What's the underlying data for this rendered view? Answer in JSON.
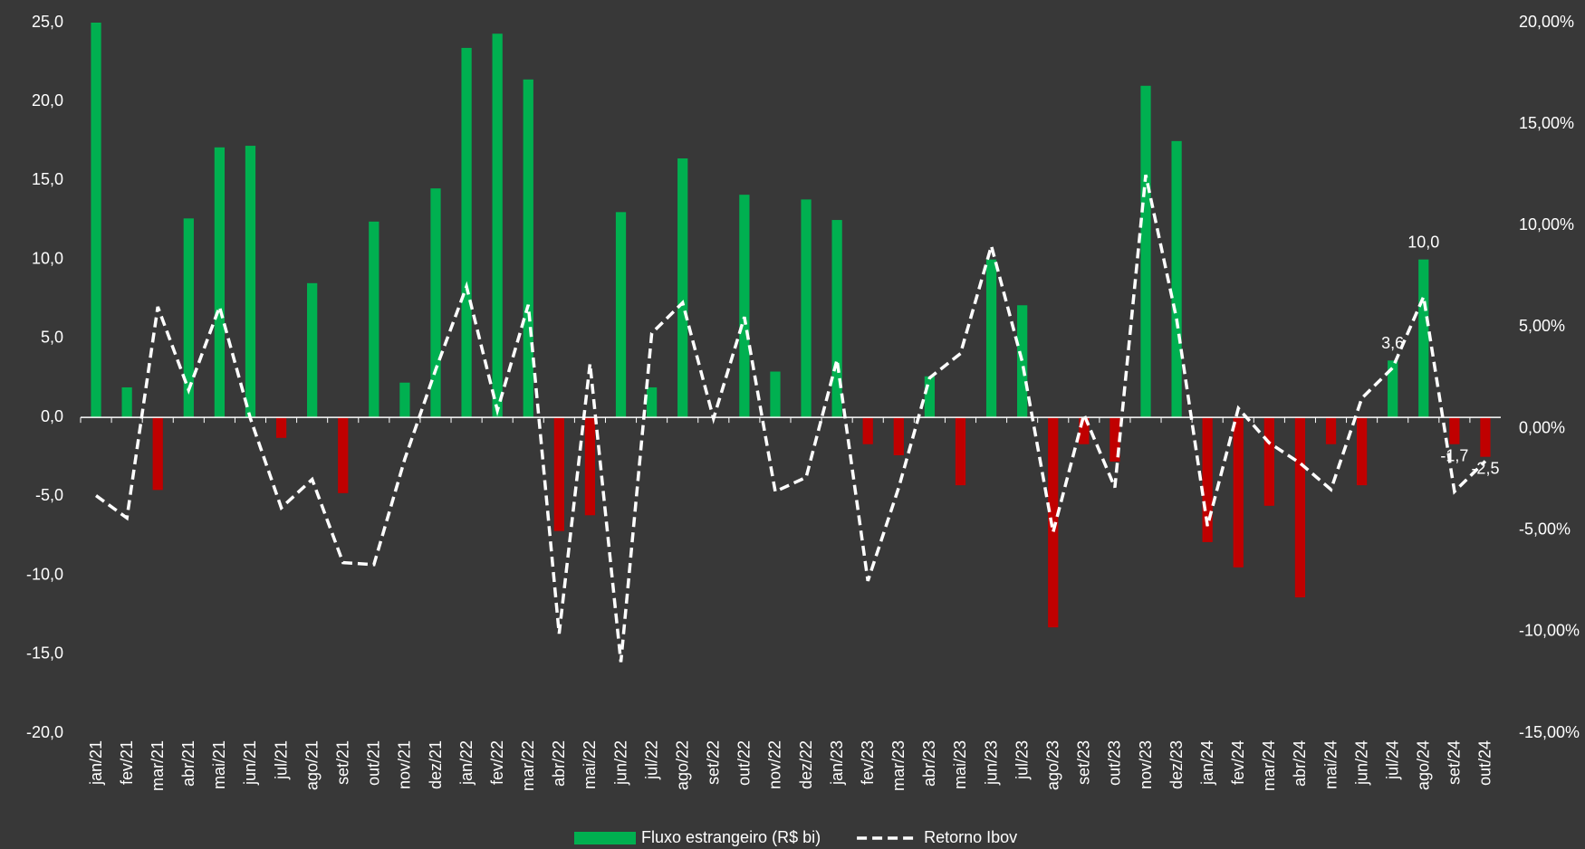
{
  "chart_data": {
    "type": "bar",
    "categories": [
      "jan/21",
      "fev/21",
      "mar/21",
      "abr/21",
      "mai/21",
      "jun/21",
      "jul/21",
      "ago/21",
      "set/21",
      "out/21",
      "nov/21",
      "dez/21",
      "jan/22",
      "fev/22",
      "mar/22",
      "abr/22",
      "mai/22",
      "jun/22",
      "jul/22",
      "ago/22",
      "set/22",
      "out/22",
      "nov/22",
      "dez/22",
      "jan/23",
      "fev/23",
      "mar/23",
      "abr/23",
      "mai/23",
      "jun/23",
      "jul/23",
      "ago/23",
      "set/23",
      "out/23",
      "nov/23",
      "dez/23",
      "jan/24",
      "fev/24",
      "mar/24",
      "abr/24",
      "mai/24",
      "jun/24",
      "jul/24",
      "ago/24",
      "set/24",
      "out/24"
    ],
    "series": [
      {
        "name": "Fluxo estrangeiro (R$ bi)",
        "type": "bar",
        "color": "#00b050",
        "negative_color": "#c00000",
        "values": [
          25.0,
          1.9,
          -4.6,
          12.6,
          17.1,
          17.2,
          -1.3,
          8.5,
          -4.8,
          12.4,
          2.2,
          14.5,
          23.4,
          24.3,
          21.4,
          -7.2,
          -6.2,
          13.0,
          1.9,
          16.4,
          0,
          14.1,
          2.9,
          13.8,
          12.5,
          -1.7,
          -2.4,
          2.6,
          -4.3,
          10.0,
          7.1,
          -13.3,
          -1.7,
          -2.8,
          21.0,
          17.5,
          -7.9,
          -9.5,
          -5.6,
          -11.4,
          -1.7,
          -4.3,
          3.6,
          10.0,
          -1.7,
          -2.5
        ],
        "value_labels": [
          null,
          null,
          null,
          null,
          null,
          null,
          null,
          null,
          null,
          null,
          null,
          null,
          null,
          null,
          null,
          null,
          null,
          null,
          null,
          null,
          null,
          null,
          null,
          null,
          null,
          null,
          null,
          null,
          null,
          null,
          null,
          null,
          null,
          null,
          null,
          null,
          null,
          null,
          null,
          null,
          null,
          null,
          "3,6",
          "10,0",
          "-1,7",
          "-2,5"
        ]
      },
      {
        "name": "Retorno Ibov",
        "type": "line",
        "axis": "y2",
        "color": "#ffffff",
        "dashed": true,
        "values": [
          -3.3,
          -4.4,
          6.0,
          1.9,
          6.0,
          0.5,
          -3.9,
          -2.5,
          -6.6,
          -6.7,
          -1.5,
          2.9,
          7.0,
          0.9,
          6.1,
          -10.1,
          3.2,
          -11.5,
          4.7,
          6.2,
          0.5,
          5.5,
          -3.1,
          -2.4,
          3.4,
          -7.5,
          -2.9,
          2.5,
          3.7,
          9.0,
          3.3,
          -5.1,
          0.7,
          -2.9,
          12.5,
          5.4,
          -4.8,
          1.0,
          -0.7,
          -1.7,
          -3.0,
          1.5,
          3.0,
          6.5,
          -3.1,
          -1.6
        ]
      }
    ],
    "ylim": [
      -20,
      25
    ],
    "yticks": [
      {
        "value": -20,
        "label": "-20,0"
      },
      {
        "value": -15,
        "label": "-15,0"
      },
      {
        "value": -10,
        "label": "-10,0"
      },
      {
        "value": -5,
        "label": "-5,0"
      },
      {
        "value": 0,
        "label": "0,0"
      },
      {
        "value": 5,
        "label": "5,0"
      },
      {
        "value": 10,
        "label": "10,0"
      },
      {
        "value": 15,
        "label": "15,0"
      },
      {
        "value": 20,
        "label": "20,0"
      },
      {
        "value": 25,
        "label": "25,0"
      }
    ],
    "y2lim": [
      -15,
      20
    ],
    "y2ticks": [
      {
        "value": -15,
        "label": "-15,00%"
      },
      {
        "value": -10,
        "label": "-10,00%"
      },
      {
        "value": -5,
        "label": "-5,00%"
      },
      {
        "value": 0,
        "label": "0,00%"
      },
      {
        "value": 5,
        "label": "5,00%"
      },
      {
        "value": 10,
        "label": "10,00%"
      },
      {
        "value": 15,
        "label": "15,00%"
      },
      {
        "value": 20,
        "label": "20,00%"
      }
    ],
    "negative_tick_color": "#ff0000",
    "grid": false,
    "legend": "bottom"
  }
}
